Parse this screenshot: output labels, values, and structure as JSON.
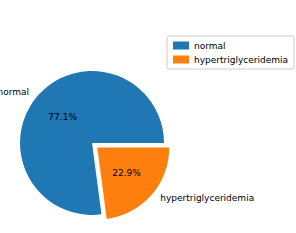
{
  "chart_data": {
    "type": "pie",
    "categories": [
      "normal",
      "hypertriglyceridemia"
    ],
    "values": [
      77.1,
      22.9
    ],
    "value_labels": [
      "77.1%",
      "22.9%"
    ],
    "colors": [
      "#1f77b4",
      "#ff7f0e"
    ],
    "legend": "upper right",
    "data_labels": true
  }
}
